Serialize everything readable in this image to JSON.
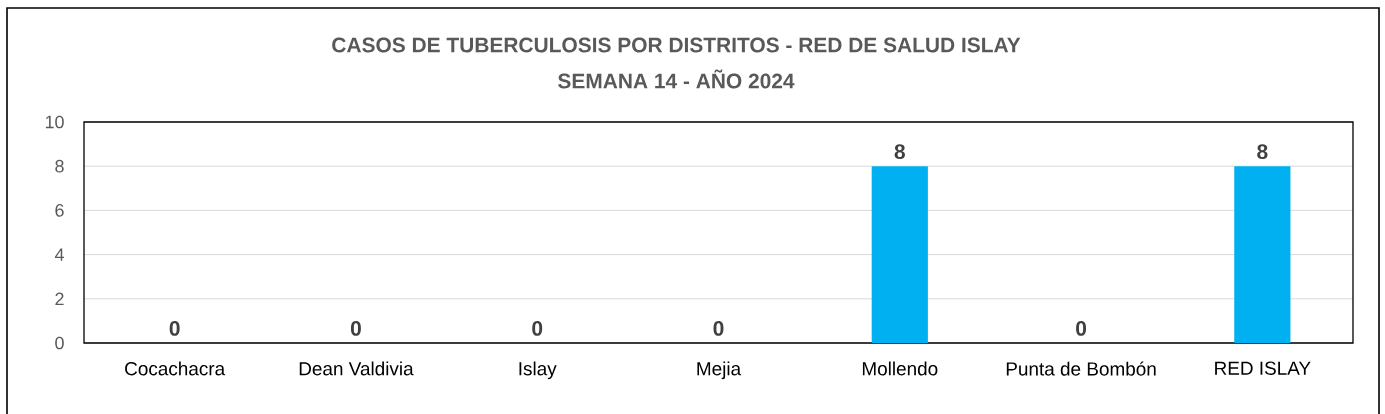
{
  "chart_data": {
    "type": "bar",
    "title": "CASOS DE TUBERCULOSIS POR DISTRITOS  - RED DE SALUD ISLAY",
    "subtitle": "SEMANA 14 -  AÑO 2024",
    "categories": [
      "Cocachacra",
      "Dean Valdivia",
      "Islay",
      "Mejia",
      "Mollendo",
      "Punta de Bombón",
      "RED ISLAY"
    ],
    "values": [
      0,
      0,
      0,
      0,
      8,
      0,
      8
    ],
    "color": "#00b0f0",
    "ylim": [
      0,
      10
    ],
    "yticks": [
      0,
      2,
      4,
      6,
      8,
      10
    ],
    "grid": "y",
    "data_labels": true
  }
}
